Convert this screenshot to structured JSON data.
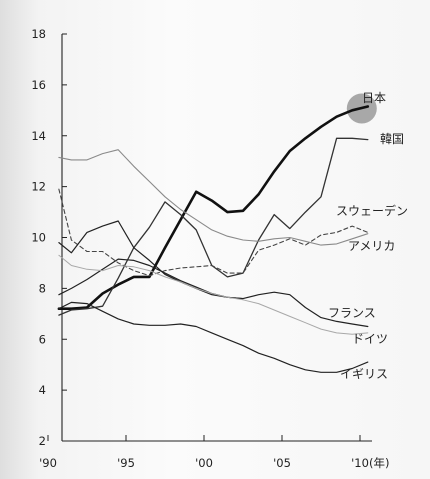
{
  "chart_data": {
    "type": "line",
    "xlabel": "(年)",
    "xlim": [
      1990,
      2011
    ],
    "ylim": [
      2,
      18
    ],
    "x_ticks": [
      {
        "value": 1990,
        "label": "'90"
      },
      {
        "value": 1995,
        "label": "'95"
      },
      {
        "value": 2000,
        "label": "'00"
      },
      {
        "value": 2005,
        "label": "'05"
      },
      {
        "value": 2010,
        "label": "'10"
      }
    ],
    "y_ticks": [
      2,
      4,
      6,
      8,
      10,
      12,
      14,
      16,
      18
    ],
    "grid": false,
    "series": [
      {
        "name": "日本",
        "color": "#111111",
        "stroke": 2.6,
        "dash": "",
        "highlight": "#9a9a9a",
        "x": [
          1990.7,
          1991.5,
          1992.5,
          1993.5,
          1994.5,
          1995.5,
          1996.5,
          1997.5,
          1998.5,
          1999.5,
          2000.5,
          2001.5,
          2002.5,
          2003.5,
          2004.5,
          2005.5,
          2006.5,
          2007.5,
          2008.5,
          2009.5,
          2010.5
        ],
        "y": [
          7.2,
          7.2,
          7.25,
          7.8,
          8.15,
          8.45,
          8.45,
          9.6,
          10.7,
          11.8,
          11.45,
          11.0,
          11.05,
          11.7,
          12.6,
          13.4,
          13.9,
          14.35,
          14.75,
          15.0,
          15.15
        ]
      },
      {
        "name": "韓国",
        "color": "#333333",
        "stroke": 1.3,
        "dash": "",
        "x": [
          1990.7,
          1991.5,
          1992.5,
          1993.5,
          1994.5,
          1995.5,
          1996.5,
          1997.5,
          1998.5,
          1999.5,
          2000.5,
          2001.5,
          2002.5,
          2003.5,
          2004.5,
          2005.5,
          2006.5,
          2007.5,
          2008.5,
          2009.5,
          2010.5
        ],
        "y": [
          6.95,
          7.15,
          7.2,
          7.3,
          8.4,
          9.6,
          10.4,
          11.4,
          10.9,
          10.3,
          8.9,
          8.45,
          8.6,
          9.9,
          10.9,
          10.35,
          11.0,
          11.6,
          13.9,
          13.9,
          13.85
        ]
      },
      {
        "name": "スウェーデン",
        "color": "#444444",
        "stroke": 1.1,
        "dash": "4 3",
        "x": [
          1990.7,
          1991.5,
          1992.5,
          1993.5,
          1994.5,
          1995.5,
          1996.5,
          1997.5,
          1998.5,
          1999.5,
          2000.5,
          2001.5,
          2002.5,
          2003.5,
          2004.5,
          2005.5,
          2006.5,
          2007.5,
          2008.5,
          2009.5,
          2010.5
        ],
        "y": [
          11.9,
          9.9,
          9.45,
          9.45,
          9.0,
          8.7,
          8.5,
          8.7,
          8.8,
          8.85,
          8.9,
          8.6,
          8.6,
          9.5,
          9.7,
          9.95,
          9.7,
          10.1,
          10.2,
          10.45,
          10.2
        ]
      },
      {
        "name": "アメリカ",
        "color": "#8a8a8a",
        "stroke": 1.1,
        "dash": "",
        "x": [
          1990.7,
          1991.5,
          1992.5,
          1993.5,
          1994.5,
          1995.5,
          1996.5,
          1997.5,
          1998.5,
          1999.5,
          2000.5,
          2001.5,
          2002.5,
          2003.5,
          2004.5,
          2005.5,
          2006.5,
          2007.5,
          2008.5,
          2009.5,
          2010.5
        ],
        "y": [
          13.15,
          13.05,
          13.05,
          13.3,
          13.45,
          12.8,
          12.2,
          11.6,
          11.1,
          10.7,
          10.3,
          10.05,
          9.9,
          9.85,
          9.95,
          10.0,
          9.85,
          9.7,
          9.75,
          9.95,
          10.15
        ]
      },
      {
        "name": "",
        "color": "#222222",
        "stroke": 1.2,
        "dash": "",
        "x": [
          1990.7,
          1991.5,
          1992.5,
          1993.5,
          1994.5,
          1995.5,
          1996.5,
          1997.5,
          1998.5,
          1999.5,
          2000.5,
          2001.5,
          2002.5
        ],
        "y": [
          9.8,
          9.4,
          10.2,
          10.45,
          10.65,
          9.6,
          9.1,
          8.55,
          8.25,
          8.0,
          7.75,
          7.65,
          7.6
        ]
      },
      {
        "name": "フランス",
        "color": "#222222",
        "stroke": 1.2,
        "dash": "",
        "x": [
          1990.7,
          1991.5,
          1992.5,
          1993.5,
          1994.5,
          1995.5,
          1996.5,
          1997.5,
          1998.5,
          1999.5,
          2000.5,
          2001.5,
          2002.5,
          2003.5,
          2004.5,
          2005.5,
          2006.5,
          2007.5,
          2008.5,
          2009.5,
          2010.5
        ],
        "y": [
          7.75,
          8.0,
          8.35,
          8.75,
          9.15,
          9.1,
          8.9,
          8.6,
          8.3,
          8.05,
          7.8,
          7.65,
          7.6,
          7.75,
          7.85,
          7.75,
          7.25,
          6.85,
          6.7,
          6.6,
          6.5
        ]
      },
      {
        "name": "ドイツ",
        "color": "#a8a8a8",
        "stroke": 1.0,
        "dash": "",
        "x": [
          1990.7,
          1991.5,
          1992.5,
          1993.5,
          1994.5,
          1995.5,
          1996.5,
          1997.5,
          1998.5,
          1999.5,
          2000.5,
          2001.5,
          2002.5,
          2003.5,
          2004.5,
          2005.5,
          2006.5,
          2007.5,
          2008.5,
          2009.5,
          2010.5
        ],
        "y": [
          9.3,
          8.9,
          8.75,
          8.7,
          8.9,
          8.85,
          8.7,
          8.45,
          8.25,
          8.0,
          7.8,
          7.65,
          7.55,
          7.4,
          7.15,
          6.9,
          6.65,
          6.4,
          6.25,
          6.2,
          6.25
        ]
      },
      {
        "name": "イギリス",
        "color": "#222222",
        "stroke": 1.2,
        "dash": "",
        "x": [
          1990.7,
          1991.5,
          1992.5,
          1993.5,
          1994.5,
          1995.5,
          1996.5,
          1997.5,
          1998.5,
          1999.5,
          2000.5,
          2001.5,
          2002.5,
          2003.5,
          2004.5,
          2005.5,
          2006.5,
          2007.5,
          2008.5,
          2009.5,
          2010.5
        ],
        "y": [
          7.2,
          7.45,
          7.4,
          7.1,
          6.8,
          6.6,
          6.55,
          6.55,
          6.6,
          6.5,
          6.25,
          6.0,
          5.75,
          5.45,
          5.25,
          5.0,
          4.8,
          4.7,
          4.7,
          4.85,
          5.1
        ]
      }
    ]
  }
}
